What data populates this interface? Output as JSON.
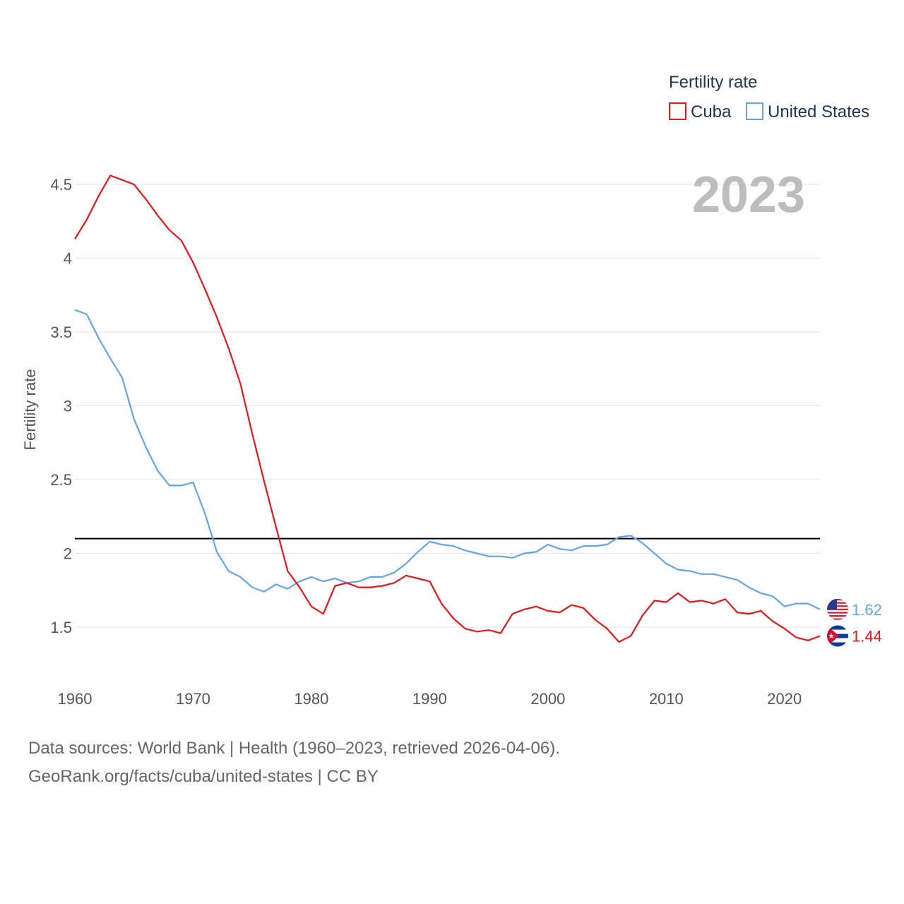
{
  "chart_data": {
    "type": "line",
    "title": "Fertility rate",
    "ylabel": "Fertility rate",
    "xlabel": "",
    "xlim": [
      1960,
      2023
    ],
    "ylim": [
      1.3,
      4.6
    ],
    "yticks": [
      1.5,
      2,
      2.5,
      3,
      3.5,
      4,
      4.5
    ],
    "ytick_labels": [
      "1.5",
      "2",
      "2.5",
      "3",
      "3.5",
      "4",
      "4.5"
    ],
    "xticks": [
      1960,
      1970,
      1980,
      1990,
      2000,
      2010,
      2020
    ],
    "xtick_labels": [
      "1960",
      "1970",
      "1980",
      "1990",
      "2000",
      "2010",
      "2020"
    ],
    "reference_line": {
      "y": 2.1,
      "color": "#000000"
    },
    "year_label": "2023",
    "grid": true,
    "legend_position": "top-right",
    "series": [
      {
        "name": "Cuba",
        "color": "#e8161b",
        "end_label": "1.44",
        "start_year": 1960,
        "values": [
          4.13,
          4.26,
          4.42,
          4.56,
          4.53,
          4.5,
          4.4,
          4.29,
          4.19,
          4.12,
          3.97,
          3.79,
          3.6,
          3.39,
          3.15,
          2.81,
          2.49,
          2.18,
          1.88,
          1.77,
          1.64,
          1.59,
          1.78,
          1.8,
          1.77,
          1.77,
          1.78,
          1.8,
          1.85,
          1.83,
          1.81,
          1.66,
          1.56,
          1.49,
          1.47,
          1.48,
          1.46,
          1.59,
          1.62,
          1.64,
          1.61,
          1.6,
          1.65,
          1.63,
          1.55,
          1.49,
          1.4,
          1.44,
          1.58,
          1.68,
          1.67,
          1.73,
          1.67,
          1.68,
          1.66,
          1.69,
          1.6,
          1.59,
          1.61,
          1.54,
          1.49,
          1.43,
          1.41,
          1.44
        ]
      },
      {
        "name": "United States",
        "color": "#64a5e8",
        "end_label": "1.62",
        "start_year": 1960,
        "values": [
          3.65,
          3.62,
          3.46,
          3.32,
          3.19,
          2.91,
          2.72,
          2.56,
          2.46,
          2.46,
          2.48,
          2.27,
          2.01,
          1.88,
          1.84,
          1.77,
          1.74,
          1.79,
          1.76,
          1.81,
          1.84,
          1.81,
          1.83,
          1.8,
          1.81,
          1.84,
          1.84,
          1.87,
          1.93,
          2.01,
          2.08,
          2.06,
          2.05,
          2.02,
          2.0,
          1.98,
          1.98,
          1.97,
          2.0,
          2.01,
          2.06,
          2.03,
          2.02,
          2.05,
          2.05,
          2.06,
          2.11,
          2.12,
          2.07,
          2.0,
          1.93,
          1.89,
          1.88,
          1.86,
          1.86,
          1.84,
          1.82,
          1.77,
          1.73,
          1.71,
          1.64,
          1.66,
          1.66,
          1.62
        ]
      }
    ]
  },
  "footer": {
    "line1": "Data sources: World Bank | Health (1960–2023, retrieved 2026-04-06).",
    "line2": "GeoRank.org/facts/cuba/united-states | CC BY"
  }
}
